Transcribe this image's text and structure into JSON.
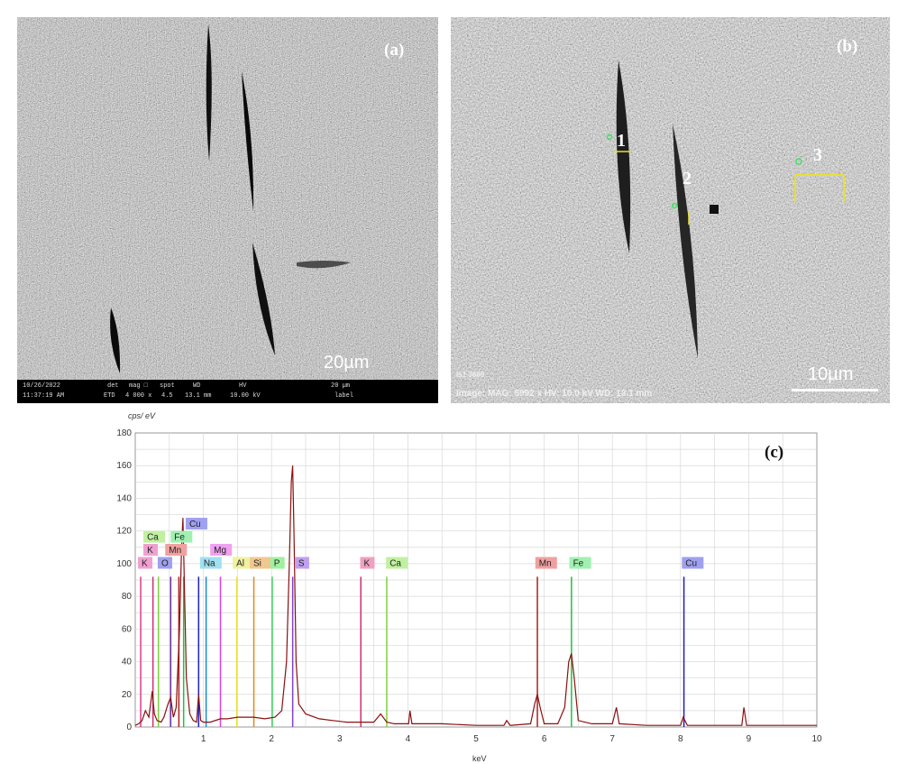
{
  "panel_a": {
    "tag": "(a)",
    "scale": "20µm",
    "info": {
      "date": "10/26/2022",
      "time": "11:37:19 AM",
      "det_h": "det",
      "det_v": "ETD",
      "mag_h": "mag □",
      "mag_v": "4 000 x",
      "spot_h": "spot",
      "spot_v": "4.5",
      "wd_h": "WD",
      "wd_v": "13.1 mm",
      "hv_h": "HV",
      "hv_v": "10.00 kV",
      "bar_text": "20 µm",
      "label": "label"
    }
  },
  "panel_b": {
    "tag": "(b)",
    "scale": "10µm",
    "region_1": "1",
    "region_2": "2",
    "region_3": "3",
    "top_text": "Is1 3669",
    "image_text": "Image: MAG: 5992 x  HV: 10.0 kV  WD: 13.1 mm"
  },
  "chart_data": {
    "type": "line",
    "title": "(c)",
    "ylabel": "cps/ eV",
    "xlabel": "keV",
    "xlim": [
      0,
      10
    ],
    "ylim": [
      0,
      180
    ],
    "x_ticks": [
      1,
      2,
      3,
      4,
      5,
      6,
      7,
      8,
      9,
      10
    ],
    "y_ticks": [
      0,
      20,
      40,
      60,
      80,
      100,
      120,
      140,
      160,
      180
    ],
    "grid": true,
    "element_lines": [
      {
        "label": "K",
        "energy": 0.08,
        "height": 92,
        "color": "#e03a8c"
      },
      {
        "label": "O",
        "energy": 0.52,
        "height": 92,
        "color": "#6a2a9a"
      },
      {
        "label": "Na",
        "energy": 1.04,
        "height": 92,
        "color": "#1a8ad0"
      },
      {
        "label": "Mg",
        "energy": 1.25,
        "height": 92,
        "color": "#e040e0"
      },
      {
        "label": "Al",
        "energy": 1.49,
        "height": 92,
        "color": "#e8e030"
      },
      {
        "label": "Si",
        "energy": 1.74,
        "height": 92,
        "color": "#e08a20"
      },
      {
        "label": "P",
        "energy": 2.01,
        "height": 92,
        "color": "#40d060"
      },
      {
        "label": "S",
        "energy": 2.31,
        "height": 92,
        "color": "#8040d0"
      },
      {
        "label": "K",
        "energy": 3.31,
        "height": 92,
        "color": "#d03070"
      },
      {
        "label": "Ca",
        "energy": 3.69,
        "height": 92,
        "color": "#80d040"
      },
      {
        "label": "Mn",
        "energy": 5.9,
        "height": 92,
        "color": "#b02020"
      },
      {
        "label": "Fe",
        "energy": 6.4,
        "height": 92,
        "color": "#20c040"
      },
      {
        "label": "Cu",
        "energy": 8.05,
        "height": 92,
        "color": "#2020c0"
      },
      {
        "label": "Ca",
        "energy": 0.34,
        "height": 92,
        "color": "#80d040"
      },
      {
        "label": "K",
        "energy": 0.26,
        "height": 92,
        "color": "#d03070"
      },
      {
        "label": "Mn",
        "energy": 0.64,
        "height": 92,
        "color": "#b02020"
      },
      {
        "label": "Fe",
        "energy": 0.71,
        "height": 92,
        "color": "#20c040"
      },
      {
        "label": "Cu",
        "energy": 0.93,
        "height": 92,
        "color": "#2020c0"
      }
    ],
    "labels": [
      {
        "text": "K",
        "x": 0.04,
        "y": 98,
        "color": "#f0a0d0"
      },
      {
        "text": "O",
        "x": 0.33,
        "y": 98,
        "color": "#a0a0f0"
      },
      {
        "text": "Na",
        "x": 0.95,
        "y": 98,
        "color": "#a0e0f0"
      },
      {
        "text": "Al",
        "x": 1.43,
        "y": 98,
        "color": "#f0f0a0"
      },
      {
        "text": "Si",
        "x": 1.68,
        "y": 98,
        "color": "#f0c890"
      },
      {
        "text": "P",
        "x": 1.98,
        "y": 98,
        "color": "#a0f0a0"
      },
      {
        "text": "S",
        "x": 2.34,
        "y": 98,
        "color": "#c0a0f0"
      },
      {
        "text": "K",
        "x": 3.3,
        "y": 98,
        "color": "#f0a0c0"
      },
      {
        "text": "Ca",
        "x": 3.68,
        "y": 98,
        "color": "#c0f0a0"
      },
      {
        "text": "Mn",
        "x": 5.87,
        "y": 98,
        "color": "#f0a0a0"
      },
      {
        "text": "Fe",
        "x": 6.37,
        "y": 98,
        "color": "#a0f0b0"
      },
      {
        "text": "Cu",
        "x": 8.02,
        "y": 98,
        "color": "#a0a0f0"
      },
      {
        "text": "K",
        "x": 0.12,
        "y": 106,
        "color": "#f0a0d0"
      },
      {
        "text": "Mn",
        "x": 0.44,
        "y": 106,
        "color": "#f0a0a0"
      },
      {
        "text": "Mg",
        "x": 1.1,
        "y": 106,
        "color": "#f0a0f0"
      },
      {
        "text": "Ca",
        "x": 0.12,
        "y": 114,
        "color": "#c0f0a0"
      },
      {
        "text": "Fe",
        "x": 0.52,
        "y": 114,
        "color": "#a0f0b0"
      },
      {
        "text": "Cu",
        "x": 0.74,
        "y": 122,
        "color": "#a0a0f0"
      }
    ],
    "spectrum": [
      [
        0.0,
        1
      ],
      [
        0.05,
        2
      ],
      [
        0.1,
        4
      ],
      [
        0.15,
        10
      ],
      [
        0.2,
        6
      ],
      [
        0.25,
        22
      ],
      [
        0.28,
        8
      ],
      [
        0.32,
        4
      ],
      [
        0.38,
        3
      ],
      [
        0.42,
        6
      ],
      [
        0.48,
        14
      ],
      [
        0.52,
        18
      ],
      [
        0.56,
        6
      ],
      [
        0.6,
        12
      ],
      [
        0.65,
        60
      ],
      [
        0.68,
        110
      ],
      [
        0.7,
        128
      ],
      [
        0.72,
        90
      ],
      [
        0.75,
        30
      ],
      [
        0.8,
        8
      ],
      [
        0.85,
        4
      ],
      [
        0.9,
        3
      ],
      [
        0.93,
        20
      ],
      [
        0.96,
        4
      ],
      [
        1.0,
        3
      ],
      [
        1.1,
        3
      ],
      [
        1.25,
        5
      ],
      [
        1.35,
        5
      ],
      [
        1.5,
        6
      ],
      [
        1.74,
        6
      ],
      [
        1.9,
        5
      ],
      [
        2.05,
        6
      ],
      [
        2.15,
        10
      ],
      [
        2.22,
        40
      ],
      [
        2.26,
        100
      ],
      [
        2.29,
        150
      ],
      [
        2.31,
        160
      ],
      [
        2.33,
        118
      ],
      [
        2.36,
        40
      ],
      [
        2.4,
        14
      ],
      [
        2.5,
        8
      ],
      [
        2.7,
        5
      ],
      [
        2.9,
        4
      ],
      [
        3.1,
        3
      ],
      [
        3.31,
        3
      ],
      [
        3.5,
        3
      ],
      [
        3.6,
        8
      ],
      [
        3.69,
        3
      ],
      [
        3.8,
        2
      ],
      [
        4.01,
        2
      ],
      [
        4.03,
        10
      ],
      [
        4.06,
        2
      ],
      [
        4.5,
        2
      ],
      [
        5.0,
        1
      ],
      [
        5.41,
        1
      ],
      [
        5.45,
        4
      ],
      [
        5.5,
        1
      ],
      [
        5.8,
        2
      ],
      [
        5.86,
        14
      ],
      [
        5.9,
        20
      ],
      [
        5.94,
        12
      ],
      [
        6.0,
        2
      ],
      [
        6.2,
        2
      ],
      [
        6.3,
        12
      ],
      [
        6.36,
        40
      ],
      [
        6.4,
        45
      ],
      [
        6.44,
        30
      ],
      [
        6.5,
        4
      ],
      [
        6.7,
        2
      ],
      [
        7.0,
        2
      ],
      [
        7.06,
        12
      ],
      [
        7.1,
        2
      ],
      [
        7.5,
        1
      ],
      [
        8.0,
        1
      ],
      [
        8.04,
        6
      ],
      [
        8.1,
        1
      ],
      [
        8.6,
        1
      ],
      [
        8.9,
        1
      ],
      [
        8.93,
        12
      ],
      [
        8.97,
        1
      ],
      [
        9.5,
        1
      ],
      [
        10.0,
        1
      ]
    ]
  }
}
